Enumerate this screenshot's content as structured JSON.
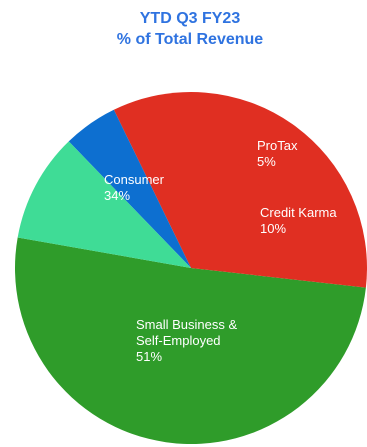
{
  "chart_data": {
    "type": "pie",
    "title": [
      "YTD Q3 FY23",
      "% of Total Revenue"
    ],
    "title_color": "#2f73e0",
    "slices": [
      {
        "label": [
          "Small Business &",
          "Self-Employed"
        ],
        "value_text": "51%",
        "value": 51,
        "color": "#2f9c2a"
      },
      {
        "label": [
          "Consumer"
        ],
        "value_text": "34%",
        "value": 34,
        "color": "#e02f22"
      },
      {
        "label": [
          "ProTax"
        ],
        "value_text": "5%",
        "value": 5,
        "color": "#0d6fd0"
      },
      {
        "label": [
          "Credit Karma"
        ],
        "value_text": "10%",
        "value": 10,
        "color": "#3fdc96"
      }
    ],
    "legend": "none"
  }
}
